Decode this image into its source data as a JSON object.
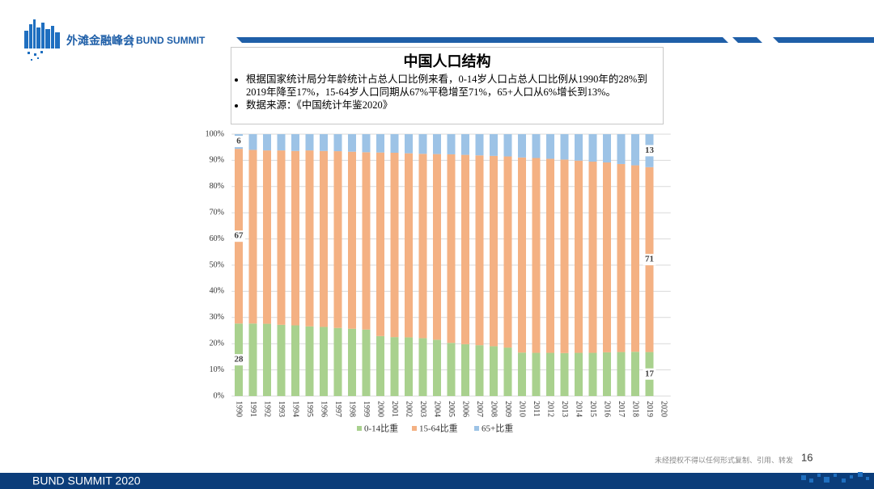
{
  "header": {
    "brand_cn": "外滩金融峰会",
    "brand_en": "BUND SUMMIT"
  },
  "slide": {
    "bullets": [
      "根据国家统计局分年龄统计占总人口比例来看，0-14岁人口占总人口比例从1990年的28%到2019年降至17%，15-64岁人口同期从67%平稳增至71%，65+人口从6%增长到13%。",
      "数据来源：《中国统计年鉴2020》"
    ]
  },
  "chart_data": {
    "type": "stacked_bar",
    "title": "中国人口结构",
    "categories": [
      "1990",
      "1991",
      "1992",
      "1993",
      "1994",
      "1995",
      "1996",
      "1997",
      "1998",
      "1999",
      "2000",
      "2001",
      "2002",
      "2003",
      "2004",
      "2005",
      "2006",
      "2007",
      "2008",
      "2009",
      "2010",
      "2011",
      "2012",
      "2013",
      "2014",
      "2015",
      "2016",
      "2017",
      "2018",
      "2019",
      "2020"
    ],
    "series": [
      {
        "name": "0-14比重",
        "color": "#a9d18e",
        "values": [
          27.7,
          27.7,
          27.6,
          27.2,
          27.0,
          26.6,
          26.4,
          26.0,
          25.7,
          25.4,
          22.9,
          22.5,
          22.4,
          22.1,
          21.5,
          20.3,
          19.8,
          19.4,
          19.0,
          18.5,
          16.6,
          16.5,
          16.5,
          16.4,
          16.5,
          16.5,
          16.7,
          16.8,
          16.9,
          16.8,
          null
        ],
        "value_labels": [
          "28",
          null,
          null,
          null,
          null,
          null,
          null,
          null,
          null,
          null,
          null,
          null,
          null,
          null,
          null,
          null,
          null,
          null,
          null,
          null,
          null,
          null,
          null,
          null,
          null,
          null,
          null,
          null,
          null,
          "17",
          null
        ]
      },
      {
        "name": "15-64比重",
        "color": "#f4b183",
        "values": [
          66.7,
          66.3,
          66.2,
          66.6,
          66.6,
          67.2,
          67.2,
          67.5,
          67.6,
          67.7,
          70.1,
          70.4,
          70.3,
          70.4,
          70.9,
          72.0,
          72.3,
          72.5,
          72.7,
          73.0,
          74.5,
          74.4,
          74.1,
          73.9,
          73.4,
          73.0,
          72.5,
          71.8,
          71.2,
          70.6,
          null
        ],
        "value_labels": [
          "67",
          null,
          null,
          null,
          null,
          null,
          null,
          null,
          null,
          null,
          null,
          null,
          null,
          null,
          null,
          null,
          null,
          null,
          null,
          null,
          null,
          null,
          null,
          null,
          null,
          null,
          null,
          null,
          null,
          "71",
          null
        ]
      },
      {
        "name": "65+比重",
        "color": "#9dc3e6",
        "values": [
          5.6,
          6.0,
          6.2,
          6.2,
          6.4,
          6.2,
          6.4,
          6.5,
          6.7,
          6.9,
          7.0,
          7.1,
          7.3,
          7.5,
          7.6,
          7.7,
          7.9,
          8.1,
          8.3,
          8.5,
          8.9,
          9.1,
          9.4,
          9.7,
          10.1,
          10.5,
          10.8,
          11.4,
          11.9,
          12.6,
          null
        ],
        "value_labels": [
          "6",
          null,
          null,
          null,
          null,
          null,
          null,
          null,
          null,
          null,
          null,
          null,
          null,
          null,
          null,
          null,
          null,
          null,
          null,
          null,
          null,
          null,
          null,
          null,
          null,
          null,
          null,
          null,
          null,
          "13",
          null
        ]
      }
    ],
    "ylim": [
      0,
      100
    ],
    "yticks": [
      {
        "value": 0,
        "label": "0%"
      },
      {
        "value": 10,
        "label": "10%"
      },
      {
        "value": 20,
        "label": "20%"
      },
      {
        "value": 30,
        "label": "30%"
      },
      {
        "value": 40,
        "label": "40%"
      },
      {
        "value": 50,
        "label": "50%"
      },
      {
        "value": 60,
        "label": "60%"
      },
      {
        "value": 70,
        "label": "70%"
      },
      {
        "value": 80,
        "label": "80%"
      },
      {
        "value": 90,
        "label": "90%"
      },
      {
        "value": 100,
        "label": "100%"
      }
    ],
    "grid": true,
    "legend": "bottom"
  },
  "footer": {
    "event": "BUND SUMMIT 2020",
    "disclaimer": "未经授权不得以任何形式复制、引用、转发",
    "page": "16"
  }
}
